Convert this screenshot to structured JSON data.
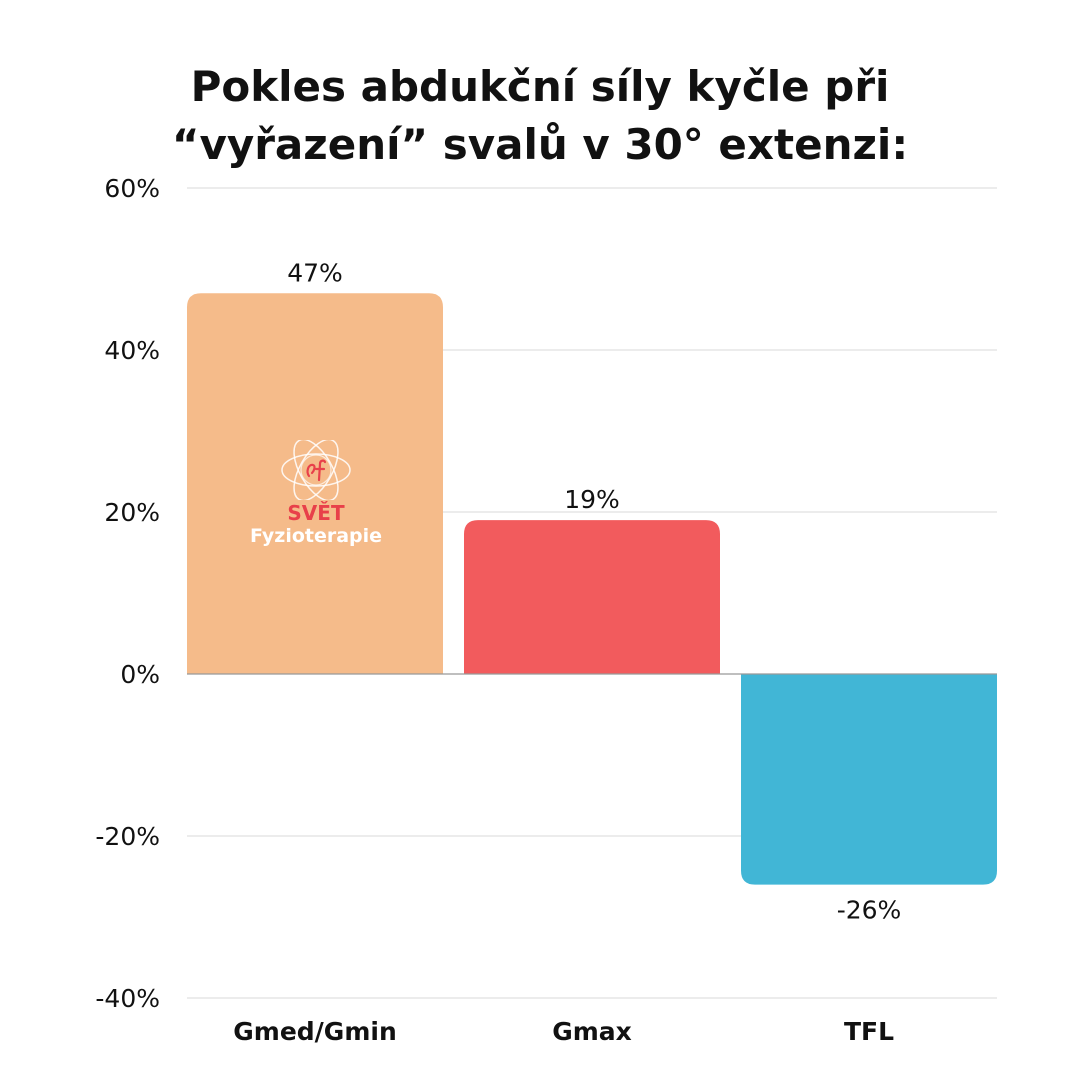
{
  "title_lines": [
    "Pokles abdukční síly kyčle při",
    "“vyřazení” svalů v 30° extenzi:"
  ],
  "logo": {
    "line1": "SVĚT",
    "line2": "Fyzioterapie"
  },
  "colors": {
    "bar_gmed": "#f5bb8a",
    "bar_gmax": "#f25b5d",
    "bar_tfl": "#41b6d6",
    "grid": "#d9d9d9",
    "zero_line": "#999999",
    "logo_red": "#e8404a"
  },
  "chart_data": {
    "type": "bar",
    "title": "Pokles abdukční síly kyčle při “vyřazení” svalů v 30° extenzi:",
    "categories": [
      "Gmed/Gmin",
      "Gmax",
      "TFL"
    ],
    "values": [
      47,
      19,
      -26
    ],
    "value_labels": [
      "47%",
      "19%",
      "-26%"
    ],
    "ylim": [
      -40,
      60
    ],
    "yticks": [
      60,
      40,
      20,
      0,
      -20,
      -40
    ],
    "ytick_labels": [
      "60%",
      "40%",
      "20%",
      "0%",
      "-20%",
      "-40%"
    ],
    "grid": true,
    "legend": "none"
  }
}
